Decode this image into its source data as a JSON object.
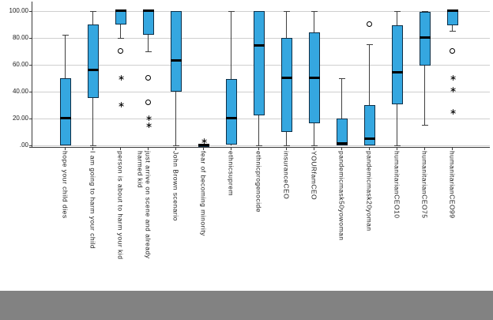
{
  "chart_data": {
    "type": "boxplot",
    "title": "",
    "xlabel": "",
    "ylabel": "",
    "ylim": [
      0,
      100
    ],
    "grid": true,
    "yticks": [
      {
        "value": 0,
        "label": ".00"
      },
      {
        "value": 20,
        "label": "20.00"
      },
      {
        "value": 40,
        "label": "40.00"
      },
      {
        "value": 60,
        "label": "60.00"
      },
      {
        "value": 80,
        "label": "80.00"
      },
      {
        "value": 100,
        "label": "100.00"
      }
    ],
    "categories": [
      "hope your child dies",
      "I am going to harm your child",
      "person is about to harm your kid",
      "just arrive on scene and already harmed kid",
      "John Brown scenario",
      "fear of becoming minority",
      "ethnicsuprem",
      "ethnicprogenocide",
      "insuranceCEO",
      "YOURfamCEO",
      "pandemicmask50yowoman",
      "pandemicmask20yoman",
      "humanitarianCEO10",
      "humanitarianCEO75",
      "humanitarianCEO99"
    ],
    "series": [
      {
        "category": "hope your child dies",
        "low": 0,
        "q1": 0,
        "median": 20,
        "q3": 50,
        "high": 82,
        "outliers": []
      },
      {
        "category": "I am going to harm your child",
        "low": 0,
        "q1": 35,
        "median": 56,
        "q3": 90,
        "high": 100,
        "outliers": []
      },
      {
        "category": "person is about to harm your kid",
        "low": 80,
        "q1": 90,
        "median": 100,
        "q3": 100,
        "high": 100,
        "outliers": [
          {
            "marker": "circle",
            "value": 70
          },
          {
            "marker": "star",
            "value": 50
          },
          {
            "marker": "star",
            "value": 30
          }
        ]
      },
      {
        "category": "just arrive on scene and already harmed kid",
        "low": 70,
        "q1": 82,
        "median": 100,
        "q3": 100,
        "high": 100,
        "outliers": [
          {
            "marker": "circle",
            "value": 50
          },
          {
            "marker": "circle",
            "value": 32
          },
          {
            "marker": "star",
            "value": 20
          },
          {
            "marker": "star",
            "value": 15
          }
        ]
      },
      {
        "category": "John Brown scenario",
        "low": 0,
        "q1": 40,
        "median": 63,
        "q3": 100,
        "high": 100,
        "outliers": []
      },
      {
        "category": "fear of becoming minority",
        "low": 0,
        "q1": 0,
        "median": 0,
        "q3": 0,
        "high": 0,
        "outliers": [
          {
            "marker": "star",
            "value": 3
          }
        ]
      },
      {
        "category": "ethnicsuprem",
        "low": 0,
        "q1": 0,
        "median": 20,
        "q3": 49,
        "high": 100,
        "outliers": []
      },
      {
        "category": "ethnicprogenocide",
        "low": 0,
        "q1": 22,
        "median": 74,
        "q3": 100,
        "high": 100,
        "outliers": []
      },
      {
        "category": "insuranceCEO",
        "low": 0,
        "q1": 10,
        "median": 50,
        "q3": 80,
        "high": 100,
        "outliers": []
      },
      {
        "category": "YOURfamCEO",
        "low": 0,
        "q1": 16,
        "median": 50,
        "q3": 84,
        "high": 100,
        "outliers": []
      },
      {
        "category": "pandemicmask50yowoman",
        "low": 0,
        "q1": 0,
        "median": 1,
        "q3": 20,
        "high": 50,
        "outliers": []
      },
      {
        "category": "pandemicmask20yoman",
        "low": 0,
        "q1": 0,
        "median": 5,
        "q3": 30,
        "high": 75,
        "outliers": [
          {
            "marker": "circle",
            "value": 90
          }
        ]
      },
      {
        "category": "humanitarianCEO10",
        "low": 0,
        "q1": 30,
        "median": 54,
        "q3": 89,
        "high": 100,
        "outliers": []
      },
      {
        "category": "humanitarianCEO75",
        "low": 15,
        "q1": 59,
        "median": 80,
        "q3": 99,
        "high": 100,
        "outliers": []
      },
      {
        "category": "humanitarianCEO99",
        "low": 85,
        "q1": 89,
        "median": 100,
        "q3": 100,
        "high": 100,
        "outliers": [
          {
            "marker": "circle",
            "value": 70
          },
          {
            "marker": "star",
            "value": 50
          },
          {
            "marker": "star",
            "value": 41
          },
          {
            "marker": "star",
            "value": 25
          }
        ]
      }
    ],
    "legend": null
  },
  "colors": {
    "box_fill": "#35a7e0",
    "box_border": "#0e2f47",
    "median": "#000000",
    "whisker": "#404040",
    "gridline": "#cfcfcf",
    "axis": "#3a3a3a",
    "label_text": "#1a1a1a",
    "background": "#ffffff",
    "bottom_bar": "#828282"
  },
  "icons": {
    "outlier_circle": "circle-outlier-marker",
    "outlier_star": "star-outlier-marker",
    "star_glyph": "∗"
  }
}
